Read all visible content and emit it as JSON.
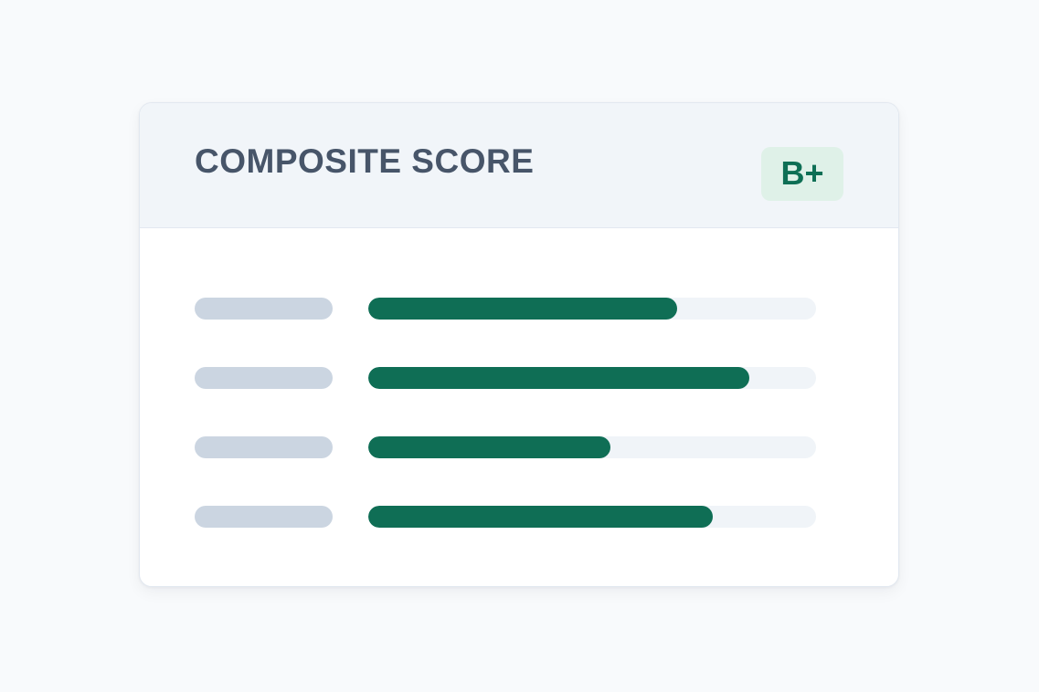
{
  "card": {
    "header": {
      "title": "COMPOSITE SCORE",
      "grade_badge": "B+"
    },
    "metrics": [
      {
        "value_pct": 69
      },
      {
        "value_pct": 85
      },
      {
        "value_pct": 54
      },
      {
        "value_pct": 77
      }
    ]
  },
  "colors": {
    "page_bg": "#f8fafc",
    "card_bg": "#ffffff",
    "header_bg": "#f1f5f9",
    "border": "#e2e8f0",
    "title": "#475569",
    "badge_bg": "#dff1e8",
    "badge_text": "#0e6f55",
    "bar_fill": "#0f6e55",
    "bar_track": "#f0f4f8",
    "label_pill": "#cbd5e1"
  }
}
